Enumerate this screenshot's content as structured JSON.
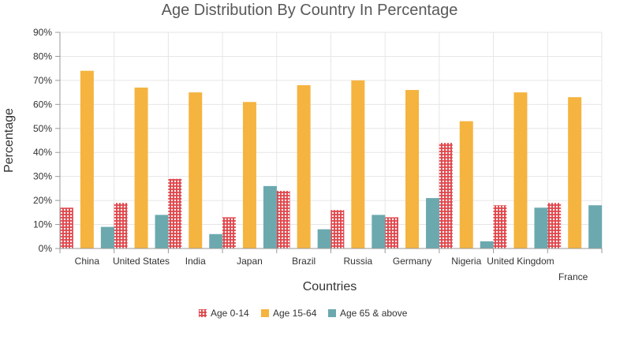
{
  "chart_data": {
    "type": "bar",
    "title": "Age Distribution By Country In Percentage",
    "xlabel": "Countries",
    "ylabel": "Percentage",
    "categories": [
      "China",
      "United States",
      "India",
      "Japan",
      "Brazil",
      "Russia",
      "Germany",
      "Nigeria",
      "United Kingdom",
      "France"
    ],
    "series": [
      {
        "name": "Age 0-14",
        "color": "#e0474c",
        "pattern": "dots",
        "values": [
          17,
          19,
          29,
          13,
          24,
          16,
          13,
          44,
          18,
          19
        ]
      },
      {
        "name": "Age 15-64",
        "color": "#f5b43f",
        "values": [
          74,
          67,
          65,
          61,
          68,
          70,
          66,
          53,
          65,
          63
        ]
      },
      {
        "name": "Age 65 & above",
        "color": "#6ba9af",
        "values": [
          9,
          14,
          6,
          26,
          8,
          14,
          21,
          3,
          17,
          18
        ]
      }
    ],
    "ylim": [
      0,
      90
    ],
    "yticks": [
      "0%",
      "10%",
      "20%",
      "30%",
      "40%",
      "50%",
      "60%",
      "70%",
      "80%",
      "90%"
    ],
    "grid": true,
    "legend_position": "bottom"
  }
}
